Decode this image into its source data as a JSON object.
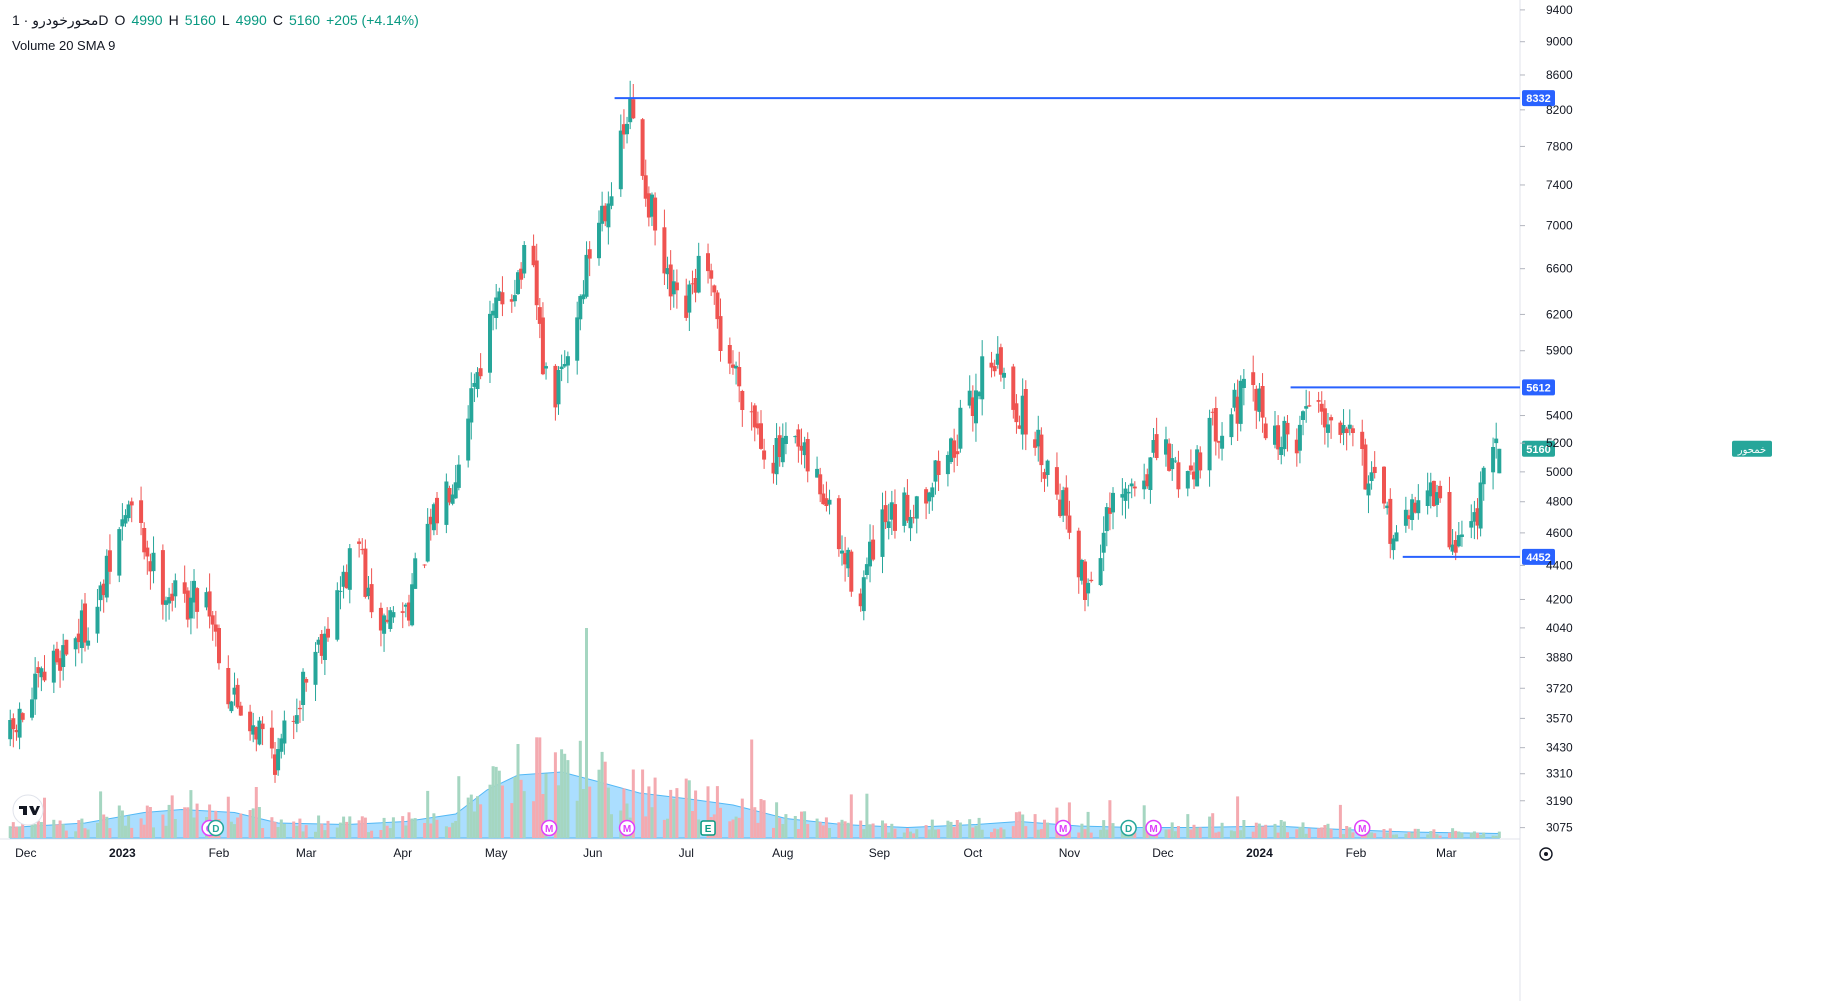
{
  "header": {
    "symbol": "محورخودرو · 1D",
    "open_label": "O",
    "open": "4990",
    "high_label": "H",
    "high": "5160",
    "low_label": "L",
    "low": "4990",
    "close_label": "C",
    "close": "5160",
    "change": "+205 (+4.14%)",
    "volume_label": "Volume 20 SMA 9"
  },
  "colors": {
    "up": "#26a69a",
    "down": "#ef5350",
    "up_volume": "#a5d6c1",
    "down_volume": "#f4aab0",
    "volume_sma_area": "#8fd3ff",
    "level_line": "#2962ff",
    "last_price": "#26a69a",
    "grid": "#f0f3fa",
    "axis_text": "#131722"
  },
  "chart_data": {
    "type": "candlestick",
    "interval": "1D",
    "x_ticks": [
      "Dec",
      "2023",
      "Feb",
      "Mar",
      "Apr",
      "May",
      "Jun",
      "Jul",
      "Aug",
      "Sep",
      "Oct",
      "Nov",
      "Dec",
      "2024",
      "Feb",
      "Mar"
    ],
    "y_ticks": [
      3075,
      3190,
      3310,
      3430,
      3570,
      3720,
      3880,
      4040,
      4200,
      4400,
      4600,
      4800,
      5000,
      5200,
      5400,
      5900,
      6200,
      6600,
      7000,
      7400,
      7800,
      8200,
      8600,
      9000,
      9400
    ],
    "y_scale": "log",
    "ylim": [
      3040,
      9450
    ],
    "levels": [
      {
        "value": 8332,
        "label": "8332"
      },
      {
        "value": 5612,
        "label": "5612"
      },
      {
        "value": 4452,
        "label": "4452"
      }
    ],
    "last_price": {
      "value": 5160,
      "label": "5160",
      "symbol_tag": "خمحور"
    },
    "close_path": [
      [
        "2022-11-26",
        3470
      ],
      [
        "2022-12-10",
        3860
      ],
      [
        "2022-12-24",
        4140
      ],
      [
        "2023-01-03",
        4780
      ],
      [
        "2023-01-12",
        4330
      ],
      [
        "2023-01-20",
        4180
      ],
      [
        "2023-01-28",
        4250
      ],
      [
        "2023-02-04",
        3700
      ],
      [
        "2023-02-12",
        3560
      ],
      [
        "2023-02-20",
        3380
      ],
      [
        "2023-03-02",
        3850
      ],
      [
        "2023-03-10",
        4150
      ],
      [
        "2023-03-18",
        4550
      ],
      [
        "2023-03-22",
        4050
      ],
      [
        "2023-04-02",
        4150
      ],
      [
        "2023-04-10",
        4600
      ],
      [
        "2023-04-18",
        5050
      ],
      [
        "2023-04-24",
        5700
      ],
      [
        "2023-05-02",
        6300
      ],
      [
        "2023-05-12",
        6700
      ],
      [
        "2023-05-18",
        5400
      ],
      [
        "2023-05-24",
        5850
      ],
      [
        "2023-06-02",
        7000
      ],
      [
        "2023-06-09",
        7600
      ],
      [
        "2023-06-13",
        8200
      ],
      [
        "2023-06-18",
        7400
      ],
      [
        "2023-06-24",
        6500
      ],
      [
        "2023-06-30",
        6100
      ],
      [
        "2023-07-06",
        6700
      ],
      [
        "2023-07-12",
        6000
      ],
      [
        "2023-07-20",
        5550
      ],
      [
        "2023-07-28",
        5100
      ],
      [
        "2023-08-05",
        5150
      ],
      [
        "2023-08-13",
        4900
      ],
      [
        "2023-08-20",
        4450
      ],
      [
        "2023-08-26",
        4250
      ],
      [
        "2023-09-01",
        4600
      ],
      [
        "2023-09-08",
        4700
      ],
      [
        "2023-09-16",
        4900
      ],
      [
        "2023-09-24",
        5150
      ],
      [
        "2023-10-01",
        5500
      ],
      [
        "2023-10-06",
        5950
      ],
      [
        "2023-10-12",
        5600
      ],
      [
        "2023-10-18",
        5350
      ],
      [
        "2023-10-26",
        5000
      ],
      [
        "2023-11-01",
        4700
      ],
      [
        "2023-11-06",
        4250
      ],
      [
        "2023-11-14",
        4700
      ],
      [
        "2023-11-22",
        4900
      ],
      [
        "2023-11-30",
        5150
      ],
      [
        "2023-12-08",
        4950
      ],
      [
        "2023-12-14",
        5200
      ],
      [
        "2023-12-22",
        5450
      ],
      [
        "2023-12-30",
        5550
      ],
      [
        "2024-01-06",
        5250
      ],
      [
        "2024-01-12",
        5200
      ],
      [
        "2024-01-18",
        5600
      ],
      [
        "2024-01-24",
        5350
      ],
      [
        "2024-01-30",
        5450
      ],
      [
        "2024-02-04",
        5000
      ],
      [
        "2024-02-10",
        4700
      ],
      [
        "2024-02-16",
        4550
      ],
      [
        "2024-02-22",
        4950
      ],
      [
        "2024-02-27",
        4800
      ],
      [
        "2024-03-02",
        4550
      ],
      [
        "2024-03-08",
        4600
      ],
      [
        "2024-03-14",
        4950
      ],
      [
        "2024-03-18",
        5160
      ]
    ],
    "volume": {
      "sma_period": 9,
      "sma_path": [
        [
          "2022-11-26",
          0.35
        ],
        [
          "2022-12-20",
          0.5
        ],
        [
          "2023-01-08",
          0.85
        ],
        [
          "2023-01-20",
          0.95
        ],
        [
          "2023-02-06",
          0.85
        ],
        [
          "2023-02-20",
          0.5
        ],
        [
          "2023-03-14",
          0.45
        ],
        [
          "2023-04-02",
          0.55
        ],
        [
          "2023-04-18",
          0.8
        ],
        [
          "2023-04-28",
          1.6
        ],
        [
          "2023-05-08",
          2.1
        ],
        [
          "2023-05-22",
          2.2
        ],
        [
          "2023-06-02",
          1.9
        ],
        [
          "2023-06-16",
          1.5
        ],
        [
          "2023-07-02",
          1.3
        ],
        [
          "2023-07-16",
          1.1
        ],
        [
          "2023-08-02",
          0.65
        ],
        [
          "2023-08-20",
          0.45
        ],
        [
          "2023-09-10",
          0.35
        ],
        [
          "2023-10-02",
          0.45
        ],
        [
          "2023-10-16",
          0.55
        ],
        [
          "2023-11-04",
          0.4
        ],
        [
          "2023-11-22",
          0.35
        ],
        [
          "2023-12-10",
          0.35
        ],
        [
          "2024-01-06",
          0.4
        ],
        [
          "2024-01-24",
          0.3
        ],
        [
          "2024-02-18",
          0.2
        ],
        [
          "2024-03-18",
          0.15
        ]
      ]
    },
    "events": [
      {
        "date": "2023-01-29",
        "letter": "O",
        "kind": "O"
      },
      {
        "date": "2023-01-31",
        "letter": "D",
        "kind": "D"
      },
      {
        "date": "2023-05-18",
        "letter": "M",
        "kind": "M"
      },
      {
        "date": "2023-06-12",
        "letter": "M",
        "kind": "M"
      },
      {
        "date": "2023-07-08",
        "letter": "E",
        "kind": "E"
      },
      {
        "date": "2023-10-30",
        "letter": "M",
        "kind": "M"
      },
      {
        "date": "2023-11-20",
        "letter": "D",
        "kind": "D"
      },
      {
        "date": "2023-11-28",
        "letter": "M",
        "kind": "M"
      },
      {
        "date": "2024-02-03",
        "letter": "M",
        "kind": "M"
      }
    ]
  }
}
